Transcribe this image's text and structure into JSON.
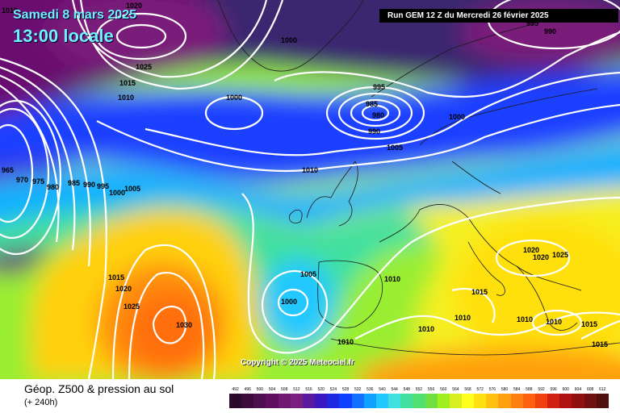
{
  "header": {
    "date": "Samedi 8 mars 2025",
    "local_time": "13:00 locale",
    "run": "Run GEM 12 Z du Mercredi 26 février 2025"
  },
  "footer": {
    "title": "Géop. Z500 & pression au sol",
    "subtitle": "(+ 240h)",
    "copyright": "Copyright © 2025 Meteociel.fr"
  },
  "map": {
    "pressure_labels": [
      {
        "text": "1010"
      },
      {
        "text": "1020"
      },
      {
        "text": "1025"
      },
      {
        "text": "1015"
      },
      {
        "text": "1010"
      },
      {
        "text": "1000"
      },
      {
        "text": "1000"
      },
      {
        "text": "995"
      },
      {
        "text": "985"
      },
      {
        "text": "980"
      },
      {
        "text": "990"
      },
      {
        "text": "1000"
      },
      {
        "text": "1005"
      },
      {
        "text": "990"
      },
      {
        "text": "995"
      },
      {
        "text": "965"
      },
      {
        "text": "970"
      },
      {
        "text": "975"
      },
      {
        "text": "980"
      },
      {
        "text": "985"
      },
      {
        "text": "990"
      },
      {
        "text": "995"
      },
      {
        "text": "1000"
      },
      {
        "text": "1005"
      },
      {
        "text": "1010"
      },
      {
        "text": "1015"
      },
      {
        "text": "1020"
      },
      {
        "text": "1025"
      },
      {
        "text": "1030"
      },
      {
        "text": "1005"
      },
      {
        "text": "1000"
      },
      {
        "text": "1010"
      },
      {
        "text": "1010"
      },
      {
        "text": "1010"
      },
      {
        "text": "1010"
      },
      {
        "text": "1015"
      },
      {
        "text": "1020"
      },
      {
        "text": "1020"
      },
      {
        "text": "1025"
      },
      {
        "text": "1010"
      },
      {
        "text": "1015"
      },
      {
        "text": "1015"
      },
      {
        "text": "1010"
      }
    ]
  },
  "legend": {
    "values": [
      "492",
      "496",
      "500",
      "504",
      "508",
      "512",
      "516",
      "520",
      "524",
      "528",
      "532",
      "536",
      "540",
      "544",
      "548",
      "552",
      "556",
      "560",
      "564",
      "568",
      "572",
      "576",
      "580",
      "584",
      "588",
      "592",
      "596",
      "600",
      "604",
      "608",
      "612"
    ],
    "colors": [
      "#2a0a2a",
      "#3c0c3c",
      "#4e0f4e",
      "#600f60",
      "#701872",
      "#7a1e80",
      "#5a1aa0",
      "#3a1ac0",
      "#1e28e0",
      "#1040ff",
      "#1070ff",
      "#10a0ff",
      "#20c8ff",
      "#40e0e0",
      "#40e0a0",
      "#50e070",
      "#70e040",
      "#a0f020",
      "#d8f020",
      "#ffff20",
      "#ffe010",
      "#ffc010",
      "#ffa010",
      "#ff8010",
      "#ff6010",
      "#f04010",
      "#d02010",
      "#b01010",
      "#901010",
      "#701010",
      "#501010"
    ]
  }
}
